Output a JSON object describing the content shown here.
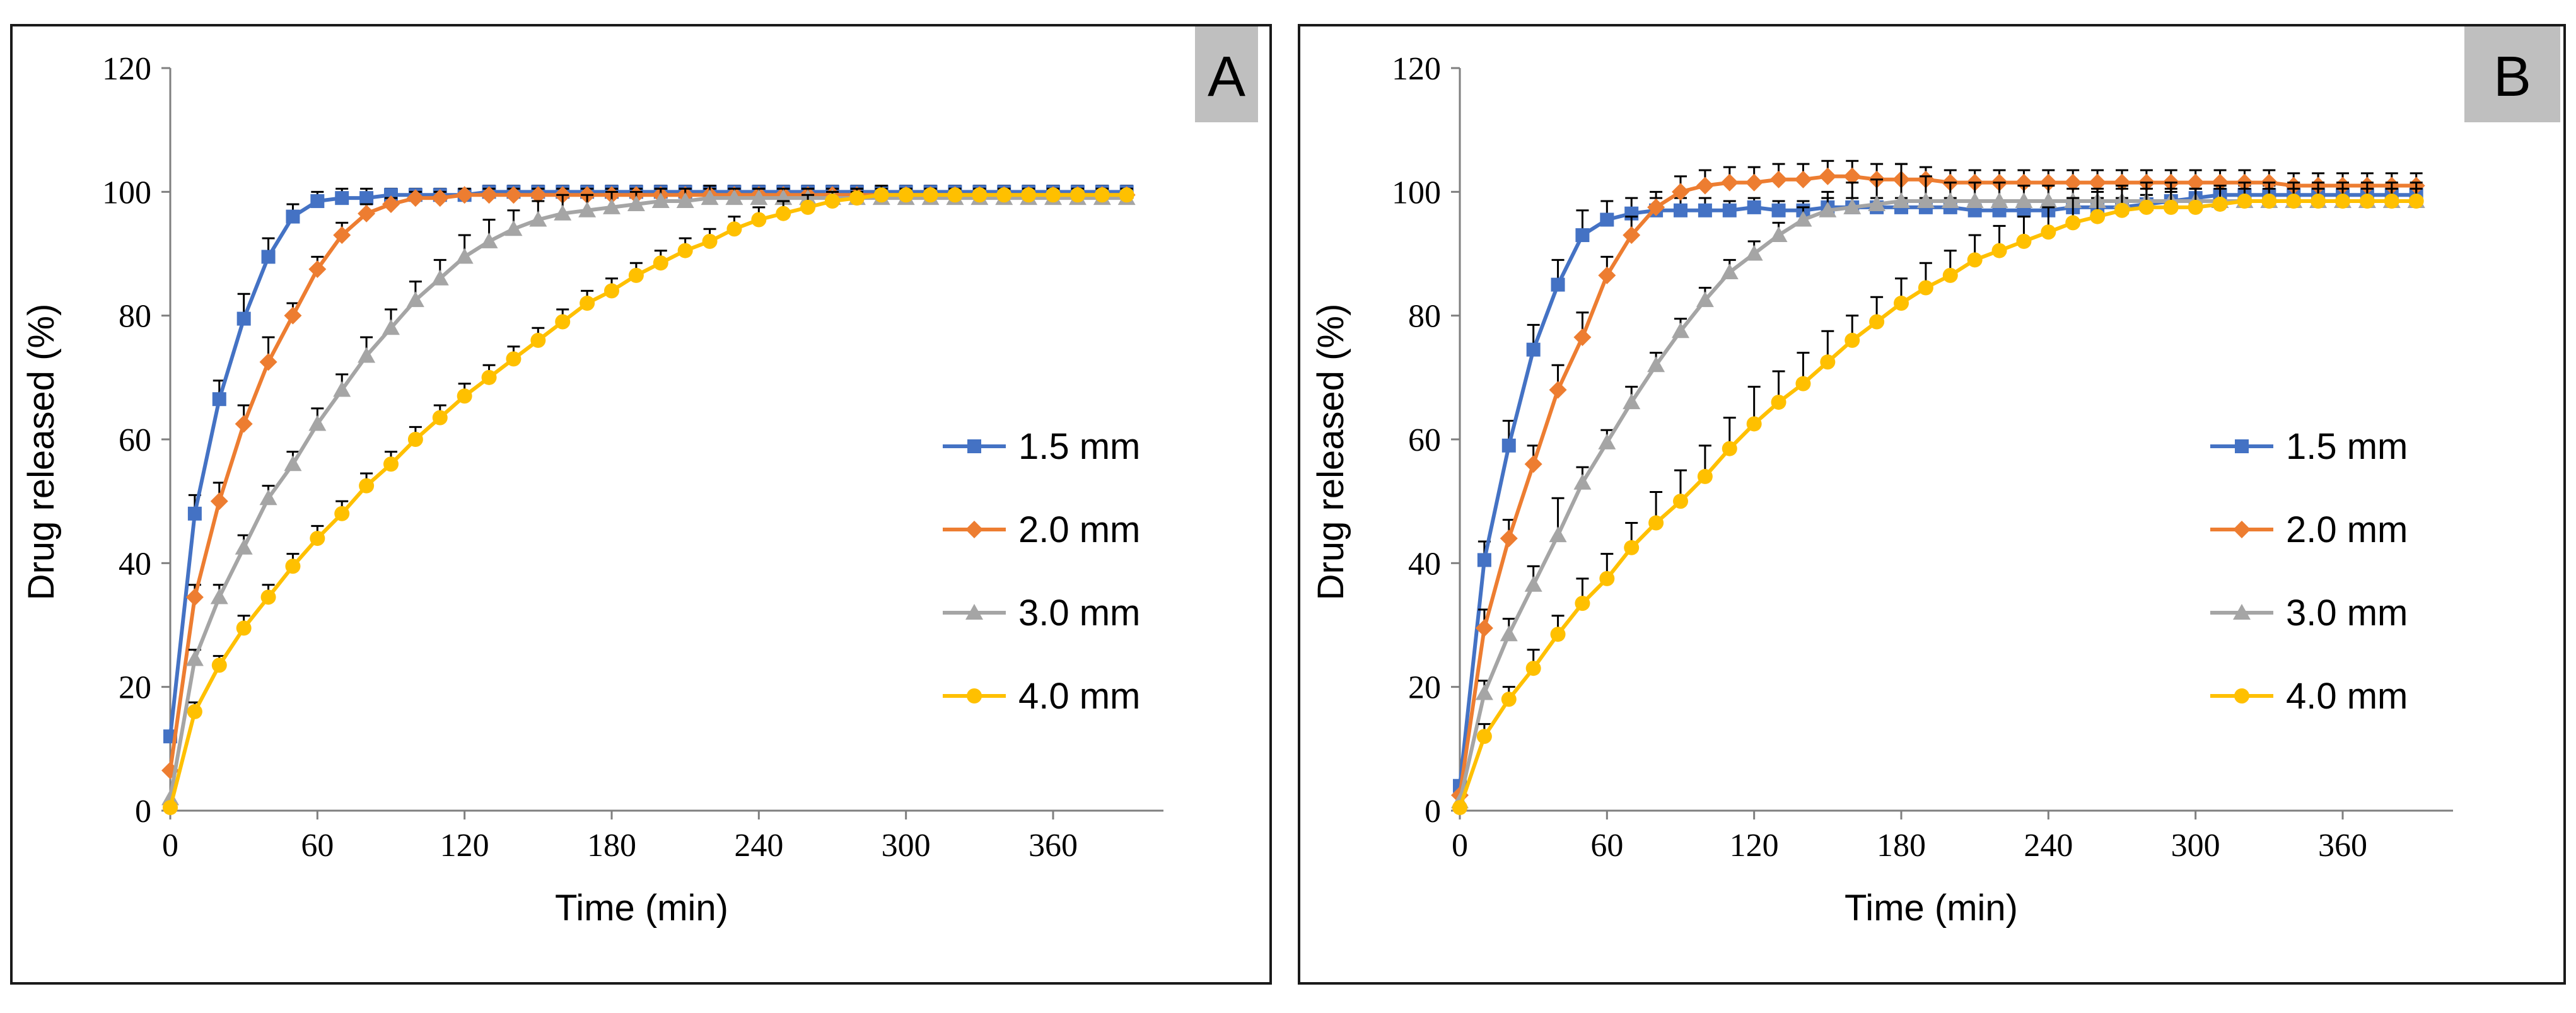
{
  "chart_data": [
    {
      "type": "line",
      "panel_label": "A",
      "title": "",
      "xlabel": "Time (min)",
      "ylabel": "Drug released (%)",
      "xlim": [
        0,
        405
      ],
      "ylim": [
        0,
        120
      ],
      "x_ticks": [
        0,
        60,
        120,
        180,
        240,
        300,
        360
      ],
      "y_ticks": [
        0,
        20,
        40,
        60,
        80,
        100,
        120
      ],
      "grid": false,
      "legend_position": "right",
      "series": [
        {
          "name": "1.5 mm",
          "color": "#4472C4",
          "marker": "square",
          "x": [
            0,
            10,
            20,
            30,
            40,
            50,
            60,
            70,
            80,
            90,
            100,
            110,
            120,
            130,
            140,
            150,
            160,
            170,
            180,
            190,
            200,
            210,
            220,
            230,
            240,
            250,
            260,
            270,
            280,
            290,
            300,
            310,
            320,
            330,
            340,
            350,
            360,
            370,
            380,
            390
          ],
          "values": [
            12,
            48,
            66.5,
            79.5,
            89.5,
            96,
            98.5,
            99,
            99,
            99.5,
            99.5,
            99.5,
            99.5,
            100,
            100,
            100,
            100,
            100,
            100,
            100,
            100,
            100,
            100,
            100,
            100,
            100,
            100,
            100,
            100,
            100,
            100,
            100,
            100,
            100,
            100,
            100,
            100,
            100,
            100,
            100
          ],
          "error": [
            0,
            3,
            3,
            4,
            3,
            2,
            1.5,
            1.5,
            1.5,
            1,
            1,
            1,
            1,
            1,
            1,
            1,
            1,
            1,
            1,
            1,
            1,
            1,
            1,
            1,
            1,
            1,
            1,
            1,
            1,
            1,
            1,
            1,
            1,
            1,
            1,
            1,
            1,
            1,
            1,
            1
          ]
        },
        {
          "name": "2.0 mm",
          "color": "#ED7D31",
          "marker": "diamond",
          "x": [
            0,
            10,
            20,
            30,
            40,
            50,
            60,
            70,
            80,
            90,
            100,
            110,
            120,
            130,
            140,
            150,
            160,
            170,
            180,
            190,
            200,
            210,
            220,
            230,
            240,
            250,
            260,
            270,
            280,
            290,
            300,
            310,
            320,
            330,
            340,
            350,
            360,
            370,
            380,
            390
          ],
          "values": [
            6.5,
            34.5,
            50,
            62.5,
            72.5,
            80,
            87.5,
            93,
            96.5,
            98,
            99,
            99,
            99.5,
            99.5,
            99.5,
            99.5,
            99.5,
            99.5,
            99.5,
            99.5,
            99.5,
            99.5,
            99.5,
            99.5,
            99.5,
            99.5,
            99.5,
            99.5,
            99.5,
            99.5,
            99.5,
            99.5,
            99.5,
            99.5,
            99.5,
            99.5,
            99.5,
            99.5,
            99.5,
            99.5
          ],
          "error": [
            0,
            2,
            3,
            3,
            4,
            2,
            2,
            2,
            1.5,
            1,
            1,
            1,
            1,
            1,
            1,
            1,
            1,
            1,
            1,
            1,
            1,
            1,
            1,
            1,
            1,
            1,
            1,
            1,
            1,
            1,
            1,
            1,
            1,
            1,
            1,
            1,
            1,
            1,
            1,
            1
          ]
        },
        {
          "name": "3.0 mm",
          "color": "#A5A5A5",
          "marker": "triangle",
          "x": [
            0,
            10,
            20,
            30,
            40,
            50,
            60,
            70,
            80,
            90,
            100,
            110,
            120,
            130,
            140,
            150,
            160,
            170,
            180,
            190,
            200,
            210,
            220,
            230,
            240,
            250,
            260,
            270,
            280,
            290,
            300,
            310,
            320,
            330,
            340,
            350,
            360,
            370,
            380,
            390
          ],
          "values": [
            2,
            24.5,
            34.5,
            42.5,
            50.5,
            56,
            62.5,
            68,
            73.5,
            78,
            82.5,
            86,
            89.5,
            92,
            94,
            95.5,
            96.5,
            97,
            97.5,
            98,
            98.5,
            98.5,
            99,
            99,
            99,
            99,
            99,
            99,
            99,
            99,
            99,
            99,
            99,
            99,
            99,
            99,
            99,
            99,
            99,
            99
          ],
          "error": [
            0,
            1.5,
            2,
            2,
            2,
            2,
            2.5,
            2.5,
            3,
            3,
            3,
            3,
            3.5,
            3.5,
            3,
            3,
            3,
            2.5,
            2.5,
            2,
            2,
            2,
            2,
            1.5,
            1.5,
            1.5,
            1.5,
            1,
            1,
            1,
            1,
            1,
            1,
            1,
            1,
            1,
            1,
            1,
            1,
            1
          ]
        },
        {
          "name": "4.0 mm",
          "color": "#FFC000",
          "marker": "circle",
          "x": [
            0,
            10,
            20,
            30,
            40,
            50,
            60,
            70,
            80,
            90,
            100,
            110,
            120,
            130,
            140,
            150,
            160,
            170,
            180,
            190,
            200,
            210,
            220,
            230,
            240,
            250,
            260,
            270,
            280,
            290,
            300,
            310,
            320,
            330,
            340,
            350,
            360,
            370,
            380,
            390
          ],
          "values": [
            0.5,
            16,
            23.5,
            29.5,
            34.5,
            39.5,
            44,
            48,
            52.5,
            56,
            60,
            63.5,
            67,
            70,
            73,
            76,
            79,
            82,
            84,
            86.5,
            88.5,
            90.5,
            92,
            94,
            95.5,
            96.5,
            97.5,
            98.5,
            99,
            99.5,
            99.5,
            99.5,
            99.5,
            99.5,
            99.5,
            99.5,
            99.5,
            99.5,
            99.5,
            99.5
          ],
          "error": [
            0,
            1.5,
            1.5,
            2,
            2,
            2,
            2,
            2,
            2,
            2,
            2,
            2,
            2,
            2,
            2,
            2,
            2,
            2,
            2,
            2,
            2,
            2,
            2,
            2,
            2,
            2,
            2,
            1.5,
            1.5,
            1.5,
            1,
            1,
            1,
            1,
            1,
            1,
            1,
            1,
            1,
            1
          ]
        }
      ]
    },
    {
      "type": "line",
      "panel_label": "B",
      "title": "",
      "xlabel": "Time (min)",
      "ylabel": "Drug released (%)",
      "xlim": [
        0,
        405
      ],
      "ylim": [
        0,
        120
      ],
      "x_ticks": [
        0,
        60,
        120,
        180,
        240,
        300,
        360
      ],
      "y_ticks": [
        0,
        20,
        40,
        60,
        80,
        100,
        120
      ],
      "grid": false,
      "legend_position": "right",
      "series": [
        {
          "name": "1.5 mm",
          "color": "#4472C4",
          "marker": "square",
          "x": [
            0,
            10,
            20,
            30,
            40,
            50,
            60,
            70,
            80,
            90,
            100,
            110,
            120,
            130,
            140,
            150,
            160,
            170,
            180,
            190,
            200,
            210,
            220,
            230,
            240,
            250,
            260,
            270,
            280,
            290,
            300,
            310,
            320,
            330,
            340,
            350,
            360,
            370,
            380,
            390
          ],
          "values": [
            4,
            40.5,
            59,
            74.5,
            85,
            93,
            95.5,
            96.5,
            97,
            97,
            97,
            97,
            97.5,
            97,
            97,
            97.5,
            97.5,
            97.5,
            97.5,
            97.5,
            97.5,
            97,
            97,
            97,
            97,
            97.5,
            97.5,
            97.5,
            98,
            98.5,
            99,
            99.5,
            99.5,
            99.5,
            99.5,
            99.5,
            99.5,
            99.5,
            99.5,
            99.5
          ],
          "error": [
            0,
            3,
            4,
            4,
            4,
            4,
            3,
            2.5,
            2,
            2,
            2,
            1.5,
            1.5,
            1.5,
            1.5,
            1.5,
            1.5,
            1.5,
            1.5,
            1.5,
            1.5,
            1.5,
            1.5,
            1.5,
            1.5,
            1.5,
            1.5,
            1.5,
            1.5,
            1.5,
            1.5,
            1.5,
            1.5,
            1.5,
            1.5,
            1.5,
            1.5,
            1.5,
            1.5,
            1.5
          ]
        },
        {
          "name": "2.0 mm",
          "color": "#ED7D31",
          "marker": "diamond",
          "x": [
            0,
            10,
            20,
            30,
            40,
            50,
            60,
            70,
            80,
            90,
            100,
            110,
            120,
            130,
            140,
            150,
            160,
            170,
            180,
            190,
            200,
            210,
            220,
            230,
            240,
            250,
            260,
            270,
            280,
            290,
            300,
            310,
            320,
            330,
            340,
            350,
            360,
            370,
            380,
            390
          ],
          "values": [
            2.5,
            29.5,
            44,
            56,
            68,
            76.5,
            86.5,
            93,
            97.5,
            100,
            101,
            101.5,
            101.5,
            102,
            102,
            102.5,
            102.5,
            102,
            102,
            102,
            101.5,
            101.5,
            101.5,
            101.5,
            101.5,
            101.5,
            101.5,
            101.5,
            101.5,
            101.5,
            101.5,
            101.5,
            101.5,
            101.5,
            101,
            101,
            101,
            101,
            101,
            101
          ],
          "error": [
            0,
            3,
            3,
            3,
            4,
            4,
            3,
            3,
            2.5,
            2.5,
            2.5,
            2.5,
            2.5,
            2.5,
            2.5,
            2.5,
            2.5,
            2.5,
            2.5,
            2,
            2,
            2,
            2,
            2,
            2,
            2,
            2,
            2,
            2,
            2,
            2,
            2,
            2,
            2,
            2,
            2,
            2,
            2,
            2,
            2
          ]
        },
        {
          "name": "3.0 mm",
          "color": "#A5A5A5",
          "marker": "triangle",
          "x": [
            0,
            10,
            20,
            30,
            40,
            50,
            60,
            70,
            80,
            90,
            100,
            110,
            120,
            130,
            140,
            150,
            160,
            170,
            180,
            190,
            200,
            210,
            220,
            230,
            240,
            250,
            260,
            270,
            280,
            290,
            300,
            310,
            320,
            330,
            340,
            350,
            360,
            370,
            380,
            390
          ],
          "values": [
            1.5,
            19,
            28.5,
            36.5,
            44.5,
            53,
            59.5,
            66,
            72,
            77.5,
            82.5,
            87,
            90,
            93,
            95.5,
            97,
            97.5,
            98,
            98.5,
            98.5,
            98.5,
            98.5,
            98.5,
            98.5,
            98.5,
            98.5,
            98.5,
            98.5,
            98.5,
            98.5,
            98.5,
            98.5,
            98.5,
            98.5,
            98.5,
            98.5,
            98.5,
            98.5,
            98.5,
            98.5
          ],
          "error": [
            0,
            2,
            2.5,
            3,
            6,
            2.5,
            2,
            2.5,
            2,
            2,
            2,
            2,
            2,
            2,
            2,
            3,
            4,
            4,
            6,
            4,
            3,
            3,
            3,
            2.5,
            2.5,
            2,
            2,
            2,
            2,
            2,
            2,
            2,
            2,
            2,
            2,
            2,
            2,
            2,
            2,
            2
          ]
        },
        {
          "name": "4.0 mm",
          "color": "#FFC000",
          "marker": "circle",
          "x": [
            0,
            10,
            20,
            30,
            40,
            50,
            60,
            70,
            80,
            90,
            100,
            110,
            120,
            130,
            140,
            150,
            160,
            170,
            180,
            190,
            200,
            210,
            220,
            230,
            240,
            250,
            260,
            270,
            280,
            290,
            300,
            310,
            320,
            330,
            340,
            350,
            360,
            370,
            380,
            390
          ],
          "values": [
            0.5,
            12,
            18,
            23,
            28.5,
            33.5,
            37.5,
            42.5,
            46.5,
            50,
            54,
            58.5,
            62.5,
            66,
            69,
            72.5,
            76,
            79,
            82,
            84.5,
            86.5,
            89,
            90.5,
            92,
            93.5,
            95,
            96,
            97,
            97.5,
            97.5,
            97.5,
            98,
            98.5,
            98.5,
            98.5,
            98.5,
            98.5,
            98.5,
            98.5,
            98.5
          ],
          "error": [
            0,
            2,
            2,
            3,
            3,
            4,
            4,
            4,
            5,
            5,
            5,
            5,
            6,
            5,
            5,
            5,
            4,
            4,
            4,
            4,
            4,
            4,
            4,
            4,
            4,
            4,
            4,
            4,
            4,
            4,
            3,
            3,
            3,
            3,
            3,
            3,
            3,
            3,
            3,
            3
          ]
        }
      ]
    }
  ]
}
